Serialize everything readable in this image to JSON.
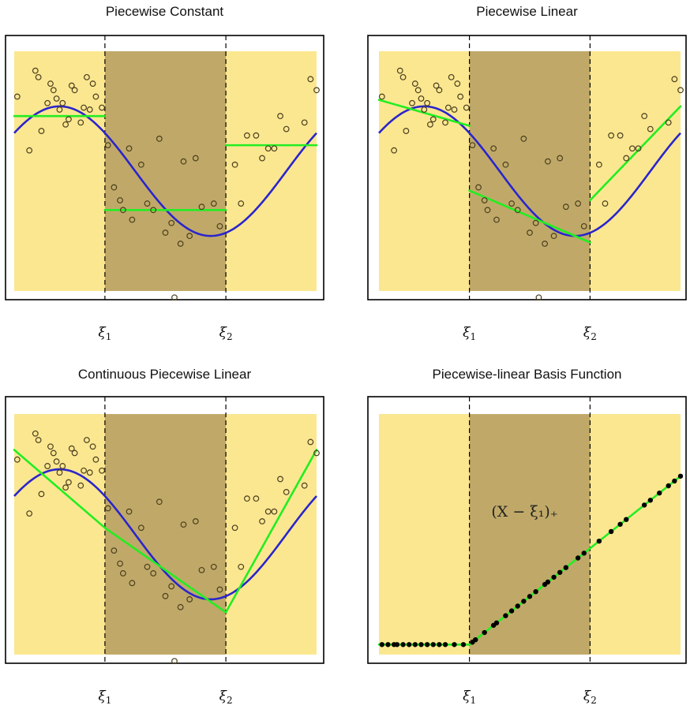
{
  "colors": {
    "light_region": "#fbe790",
    "dark_region": "#c0a968",
    "true_curve": "#2a25cc",
    "fit": "#22ee22",
    "point_stroke": "#4a3e1e",
    "frame": "#000000"
  },
  "knot_labels": {
    "symbol": "ξ",
    "sub1": "1",
    "sub2": "2"
  },
  "chart_data": [
    {
      "type": "scatter",
      "title": "Piecewise Constant",
      "xlim": [
        0,
        1
      ],
      "ylim": [
        -1.85,
        1.85
      ],
      "knots": [
        0.3,
        0.7
      ],
      "true_curve": "sin",
      "fit": {
        "kind": "piecewise_constant",
        "segments": [
          {
            "x": [
              0.0,
              0.3
            ],
            "y": [
              0.85,
              0.85
            ]
          },
          {
            "x": [
              0.3,
              0.7
            ],
            "y": [
              -0.6,
              -0.6
            ]
          },
          {
            "x": [
              0.7,
              1.0
            ],
            "y": [
              0.4,
              0.4
            ]
          }
        ]
      },
      "points": [
        [
          0.01,
          1.15
        ],
        [
          0.05,
          0.32
        ],
        [
          0.07,
          1.55
        ],
        [
          0.08,
          1.45
        ],
        [
          0.09,
          0.62
        ],
        [
          0.11,
          1.05
        ],
        [
          0.12,
          1.35
        ],
        [
          0.13,
          1.25
        ],
        [
          0.14,
          1.12
        ],
        [
          0.15,
          0.95
        ],
        [
          0.16,
          1.05
        ],
        [
          0.17,
          0.72
        ],
        [
          0.18,
          0.8
        ],
        [
          0.19,
          1.32
        ],
        [
          0.2,
          1.25
        ],
        [
          0.22,
          0.75
        ],
        [
          0.23,
          0.98
        ],
        [
          0.24,
          1.45
        ],
        [
          0.25,
          0.95
        ],
        [
          0.26,
          1.35
        ],
        [
          0.27,
          1.15
        ],
        [
          0.29,
          0.98
        ],
        [
          0.31,
          0.4
        ],
        [
          0.33,
          -0.25
        ],
        [
          0.35,
          -0.45
        ],
        [
          0.36,
          -0.6
        ],
        [
          0.38,
          0.35
        ],
        [
          0.39,
          -0.75
        ],
        [
          0.42,
          0.1
        ],
        [
          0.44,
          -0.5
        ],
        [
          0.46,
          -0.6
        ],
        [
          0.48,
          0.5
        ],
        [
          0.5,
          -0.95
        ],
        [
          0.52,
          -0.8
        ],
        [
          0.55,
          -1.12
        ],
        [
          0.56,
          0.15
        ],
        [
          0.58,
          -1.0
        ],
        [
          0.6,
          0.2
        ],
        [
          0.62,
          -0.55
        ],
        [
          0.66,
          -0.5
        ],
        [
          0.68,
          -0.85
        ],
        [
          0.73,
          0.1
        ],
        [
          0.75,
          -0.5
        ],
        [
          0.77,
          0.55
        ],
        [
          0.8,
          0.55
        ],
        [
          0.82,
          0.2
        ],
        [
          0.84,
          0.35
        ],
        [
          0.86,
          0.35
        ],
        [
          0.88,
          0.85
        ],
        [
          0.9,
          0.65
        ],
        [
          0.96,
          0.75
        ],
        [
          0.98,
          1.42
        ],
        [
          1.0,
          1.25
        ],
        [
          0.53,
          -1.95
        ]
      ]
    },
    {
      "type": "scatter",
      "title": "Piecewise Linear",
      "xlim": [
        0,
        1
      ],
      "ylim": [
        -1.85,
        1.85
      ],
      "knots": [
        0.3,
        0.7
      ],
      "true_curve": "sin",
      "fit": {
        "kind": "piecewise_linear",
        "segments": [
          {
            "x": [
              0.0,
              0.3
            ],
            "y": [
              1.1,
              0.7
            ]
          },
          {
            "x": [
              0.3,
              0.7
            ],
            "y": [
              -0.3,
              -1.1
            ]
          },
          {
            "x": [
              0.7,
              1.0
            ],
            "y": [
              -0.45,
              1.0
            ]
          }
        ]
      },
      "points": [
        [
          0.01,
          1.15
        ],
        [
          0.05,
          0.32
        ],
        [
          0.07,
          1.55
        ],
        [
          0.08,
          1.45
        ],
        [
          0.09,
          0.62
        ],
        [
          0.11,
          1.05
        ],
        [
          0.12,
          1.35
        ],
        [
          0.13,
          1.25
        ],
        [
          0.14,
          1.12
        ],
        [
          0.15,
          0.95
        ],
        [
          0.16,
          1.05
        ],
        [
          0.17,
          0.72
        ],
        [
          0.18,
          0.8
        ],
        [
          0.19,
          1.32
        ],
        [
          0.2,
          1.25
        ],
        [
          0.22,
          0.75
        ],
        [
          0.23,
          0.98
        ],
        [
          0.24,
          1.45
        ],
        [
          0.25,
          0.95
        ],
        [
          0.26,
          1.35
        ],
        [
          0.27,
          1.15
        ],
        [
          0.29,
          0.98
        ],
        [
          0.31,
          0.4
        ],
        [
          0.33,
          -0.25
        ],
        [
          0.35,
          -0.45
        ],
        [
          0.36,
          -0.6
        ],
        [
          0.38,
          0.35
        ],
        [
          0.39,
          -0.75
        ],
        [
          0.42,
          0.1
        ],
        [
          0.44,
          -0.5
        ],
        [
          0.46,
          -0.6
        ],
        [
          0.48,
          0.5
        ],
        [
          0.5,
          -0.95
        ],
        [
          0.52,
          -0.8
        ],
        [
          0.55,
          -1.12
        ],
        [
          0.56,
          0.15
        ],
        [
          0.58,
          -1.0
        ],
        [
          0.6,
          0.2
        ],
        [
          0.62,
          -0.55
        ],
        [
          0.66,
          -0.5
        ],
        [
          0.68,
          -0.85
        ],
        [
          0.73,
          0.1
        ],
        [
          0.75,
          -0.5
        ],
        [
          0.77,
          0.55
        ],
        [
          0.8,
          0.55
        ],
        [
          0.82,
          0.2
        ],
        [
          0.84,
          0.35
        ],
        [
          0.86,
          0.35
        ],
        [
          0.88,
          0.85
        ],
        [
          0.9,
          0.65
        ],
        [
          0.96,
          0.75
        ],
        [
          0.98,
          1.42
        ],
        [
          1.0,
          1.25
        ],
        [
          0.53,
          -1.95
        ]
      ]
    },
    {
      "type": "scatter",
      "title": "Continuous Piecewise Linear",
      "xlim": [
        0,
        1
      ],
      "ylim": [
        -1.85,
        1.85
      ],
      "knots": [
        0.3,
        0.7
      ],
      "true_curve": "sin",
      "fit": {
        "kind": "continuous_piecewise_linear",
        "segments": [
          {
            "x": [
              0.0,
              0.3
            ],
            "y": [
              1.3,
              0.1
            ]
          },
          {
            "x": [
              0.3,
              0.7
            ],
            "y": [
              0.1,
              -1.2
            ]
          },
          {
            "x": [
              0.7,
              1.0
            ],
            "y": [
              -1.2,
              1.3
            ]
          }
        ]
      },
      "points": [
        [
          0.01,
          1.15
        ],
        [
          0.05,
          0.32
        ],
        [
          0.07,
          1.55
        ],
        [
          0.08,
          1.45
        ],
        [
          0.09,
          0.62
        ],
        [
          0.11,
          1.05
        ],
        [
          0.12,
          1.35
        ],
        [
          0.13,
          1.25
        ],
        [
          0.14,
          1.12
        ],
        [
          0.15,
          0.95
        ],
        [
          0.16,
          1.05
        ],
        [
          0.17,
          0.72
        ],
        [
          0.18,
          0.8
        ],
        [
          0.19,
          1.32
        ],
        [
          0.2,
          1.25
        ],
        [
          0.22,
          0.75
        ],
        [
          0.23,
          0.98
        ],
        [
          0.24,
          1.45
        ],
        [
          0.25,
          0.95
        ],
        [
          0.26,
          1.35
        ],
        [
          0.27,
          1.15
        ],
        [
          0.29,
          0.98
        ],
        [
          0.31,
          0.4
        ],
        [
          0.33,
          -0.25
        ],
        [
          0.35,
          -0.45
        ],
        [
          0.36,
          -0.6
        ],
        [
          0.38,
          0.35
        ],
        [
          0.39,
          -0.75
        ],
        [
          0.42,
          0.1
        ],
        [
          0.44,
          -0.5
        ],
        [
          0.46,
          -0.6
        ],
        [
          0.48,
          0.5
        ],
        [
          0.5,
          -0.95
        ],
        [
          0.52,
          -0.8
        ],
        [
          0.55,
          -1.12
        ],
        [
          0.56,
          0.15
        ],
        [
          0.58,
          -1.0
        ],
        [
          0.6,
          0.2
        ],
        [
          0.62,
          -0.55
        ],
        [
          0.66,
          -0.5
        ],
        [
          0.68,
          -0.85
        ],
        [
          0.73,
          0.1
        ],
        [
          0.75,
          -0.5
        ],
        [
          0.77,
          0.55
        ],
        [
          0.8,
          0.55
        ],
        [
          0.82,
          0.2
        ],
        [
          0.84,
          0.35
        ],
        [
          0.86,
          0.35
        ],
        [
          0.88,
          0.85
        ],
        [
          0.9,
          0.65
        ],
        [
          0.96,
          0.75
        ],
        [
          0.98,
          1.42
        ],
        [
          1.0,
          1.25
        ],
        [
          0.53,
          -1.95
        ]
      ]
    },
    {
      "type": "line",
      "title": "Piecewise-linear Basis Function",
      "xlim": [
        0,
        1
      ],
      "ylim": [
        -0.05,
        1.15
      ],
      "knots": [
        0.3,
        0.7
      ],
      "annotation": "(X − ξ₁)₊",
      "fit": {
        "kind": "basis_function",
        "segments": [
          {
            "x": [
              0.0,
              0.3
            ],
            "y": [
              0.0,
              0.0
            ]
          },
          {
            "x": [
              0.3,
              1.0
            ],
            "y": [
              0.0,
              0.84
            ]
          }
        ]
      },
      "points": [
        [
          0.01,
          0.0
        ],
        [
          0.03,
          0.0
        ],
        [
          0.05,
          0.0
        ],
        [
          0.06,
          0.0
        ],
        [
          0.08,
          0.0
        ],
        [
          0.1,
          0.0
        ],
        [
          0.12,
          0.0
        ],
        [
          0.14,
          0.0
        ],
        [
          0.16,
          0.0
        ],
        [
          0.18,
          0.0
        ],
        [
          0.2,
          0.0
        ],
        [
          0.22,
          0.0
        ],
        [
          0.25,
          0.0
        ],
        [
          0.28,
          0.0
        ],
        [
          0.31,
          0.012
        ],
        [
          0.32,
          0.024
        ],
        [
          0.35,
          0.06
        ],
        [
          0.38,
          0.096
        ],
        [
          0.39,
          0.108
        ],
        [
          0.42,
          0.144
        ],
        [
          0.44,
          0.168
        ],
        [
          0.46,
          0.192
        ],
        [
          0.48,
          0.216
        ],
        [
          0.5,
          0.24
        ],
        [
          0.52,
          0.264
        ],
        [
          0.55,
          0.3
        ],
        [
          0.56,
          0.312
        ],
        [
          0.58,
          0.336
        ],
        [
          0.6,
          0.36
        ],
        [
          0.62,
          0.384
        ],
        [
          0.66,
          0.432
        ],
        [
          0.68,
          0.456
        ],
        [
          0.73,
          0.516
        ],
        [
          0.77,
          0.564
        ],
        [
          0.8,
          0.6
        ],
        [
          0.82,
          0.624
        ],
        [
          0.88,
          0.696
        ],
        [
          0.9,
          0.72
        ],
        [
          0.93,
          0.756
        ],
        [
          0.96,
          0.792
        ],
        [
          0.98,
          0.816
        ],
        [
          1.0,
          0.84
        ]
      ]
    }
  ]
}
